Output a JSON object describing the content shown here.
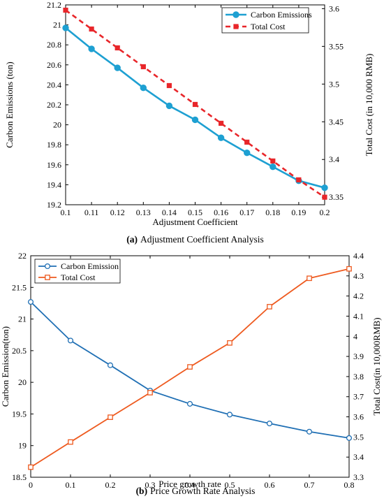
{
  "chart_data": [
    {
      "type": "line",
      "caption_letter": "(a)",
      "caption_text": "Adjustment Coefficient Analysis",
      "xlabel": "Adjustment Coefficient",
      "ylabel_left": "Carbon Emissions (ton)",
      "ylabel_right": "Total Cost (in 10,000 RMB)",
      "xlim": [
        0.1,
        0.2
      ],
      "xticks": [
        "0.1",
        "0.11",
        "0.12",
        "0.13",
        "0.14",
        "0.15",
        "0.16",
        "0.17",
        "0.18",
        "0.19",
        "0.2"
      ],
      "xtick_values": [
        0.1,
        0.11,
        0.12,
        0.13,
        0.14,
        0.15,
        0.16,
        0.17,
        0.18,
        0.19,
        0.2
      ],
      "ylim_left": [
        19.2,
        21.2
      ],
      "yticks_left": [
        "19.2",
        "19.4",
        "19.6",
        "19.8",
        "20",
        "20.2",
        "20.4",
        "20.6",
        "20.8",
        "21",
        "21.2"
      ],
      "ylim_right": [
        3.34,
        3.605
      ],
      "yticks_right": [
        "3.35",
        "3.4",
        "3.45",
        "3.5",
        "3.55",
        "3.6"
      ],
      "legend_position": "top-right",
      "x": [
        0.1,
        0.11,
        0.12,
        0.13,
        0.14,
        0.15,
        0.16,
        0.17,
        0.18,
        0.19,
        0.2
      ],
      "series": [
        {
          "name": "Carbon Emissions",
          "axis": "left",
          "color": "#1ea0d2",
          "marker": "circle-filled",
          "style": "solid",
          "values": [
            20.97,
            20.76,
            20.57,
            20.37,
            20.19,
            20.05,
            19.87,
            19.72,
            19.58,
            19.44,
            19.37
          ]
        },
        {
          "name": "Total Cost",
          "axis": "right",
          "color": "#e8262a",
          "marker": "square-filled",
          "style": "dashed",
          "values": [
            3.598,
            3.573,
            3.548,
            3.523,
            3.498,
            3.473,
            3.448,
            3.423,
            3.398,
            3.373,
            3.35
          ]
        }
      ]
    },
    {
      "type": "line",
      "caption_letter": "(b)",
      "caption_text": "Price Growth Rate Analysis",
      "xlabel": "Price growth rate",
      "ylabel_left": "Carbon Emission(ton)",
      "ylabel_right": "Total Cost(in 10,000RMB)",
      "xlim": [
        0,
        0.8
      ],
      "xticks": [
        "0",
        "0.1",
        "0.2",
        "0.3",
        "0.4",
        "0.5",
        "0.6",
        "0.7",
        "0.8"
      ],
      "xtick_values": [
        0,
        0.1,
        0.2,
        0.3,
        0.4,
        0.5,
        0.6,
        0.7,
        0.8
      ],
      "ylim_left": [
        18.5,
        22
      ],
      "yticks_left": [
        "18.5",
        "19",
        "19.5",
        "20",
        "20.5",
        "21",
        "21.5",
        "22"
      ],
      "ylim_right": [
        3.3,
        4.4
      ],
      "yticks_right": [
        "3.3",
        "3.4",
        "3.5",
        "3.6",
        "3.7",
        "3.8",
        "3.9",
        "4",
        "4.1",
        "4.2",
        "4.3",
        "4.4"
      ],
      "legend_position": "top-left",
      "x": [
        0,
        0.1,
        0.2,
        0.3,
        0.4,
        0.5,
        0.6,
        0.7,
        0.8
      ],
      "series": [
        {
          "name": "Carbon Emission",
          "axis": "left",
          "color": "#1f6fb4",
          "marker": "circle-open",
          "style": "solid",
          "values": [
            21.27,
            20.66,
            20.27,
            19.87,
            19.66,
            19.49,
            19.35,
            19.22,
            19.12
          ]
        },
        {
          "name": "Total Cost",
          "axis": "right",
          "color": "#ee5a1f",
          "marker": "square-open",
          "style": "solid",
          "values": [
            3.35,
            3.475,
            3.598,
            3.72,
            3.848,
            3.967,
            4.147,
            4.288,
            4.335
          ]
        }
      ]
    }
  ]
}
